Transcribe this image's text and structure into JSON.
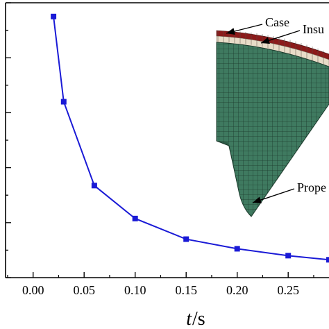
{
  "chart_data": {
    "type": "line",
    "title": "",
    "xlabel": {
      "var": "t",
      "unit": "/s"
    },
    "ylabel": "",
    "xlim": [
      -0.027,
      0.29
    ],
    "ylim": [
      0,
      1
    ],
    "x_ticks": [
      "0.00",
      "0.05",
      "0.10",
      "0.15",
      "0.20",
      "0.25"
    ],
    "grid": false,
    "legend": "none",
    "series": [
      {
        "x": [
          0.02,
          0.03,
          0.06,
          0.1,
          0.15,
          0.2,
          0.25,
          0.29
        ],
        "y": [
          0.95,
          0.64,
          0.335,
          0.215,
          0.14,
          0.105,
          0.08,
          0.065
        ],
        "color": "#1a1ad6",
        "marker": "square"
      }
    ],
    "inset": {
      "description_labels": [
        "Case",
        "Insu",
        "Prope"
      ],
      "colors": {
        "case": "#8b1a1a",
        "insulation": "#e8dcc8",
        "propellant": "#3f7a60",
        "mesh": "#1c3a2c"
      }
    }
  }
}
